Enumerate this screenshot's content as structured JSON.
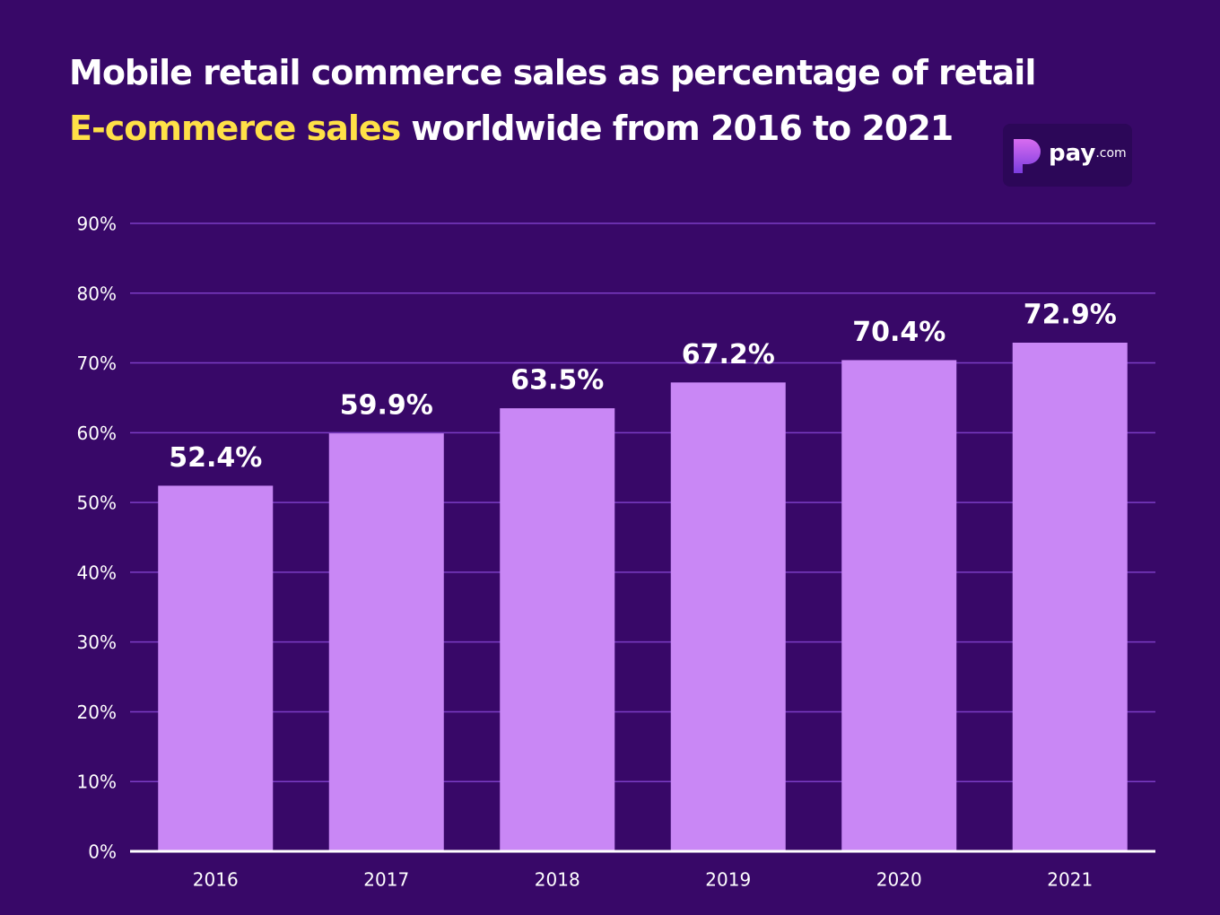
{
  "chart_data": {
    "type": "bar",
    "title": [
      "Mobile retail commerce sales as percentage of retail",
      "E-commerce sales",
      "worldwide from 2016 to 2021"
    ],
    "logo": [
      "pay",
      ".com"
    ],
    "categories": [
      "2016",
      "2017",
      "2018",
      "2019",
      "2020",
      "2021"
    ],
    "values": [
      52.4,
      59.9,
      63.5,
      67.2,
      70.4,
      72.9
    ],
    "value_labels": [
      "52.4%",
      "59.9%",
      "63.5%",
      "67.2%",
      "70.4%",
      "72.9%"
    ],
    "color": "#c987f5",
    "ylim": [
      0,
      90
    ],
    "yticks": [
      {
        "value": 0,
        "label": "0%"
      },
      {
        "value": 10,
        "label": "10%"
      },
      {
        "value": 20,
        "label": "20%"
      },
      {
        "value": 30,
        "label": "30%"
      },
      {
        "value": 40,
        "label": "40%"
      },
      {
        "value": 50,
        "label": "50%"
      },
      {
        "value": 60,
        "label": "60%"
      },
      {
        "value": 70,
        "label": "70%"
      },
      {
        "value": 80,
        "label": "80%"
      },
      {
        "value": 90,
        "label": "90%"
      }
    ],
    "grid": true
  }
}
